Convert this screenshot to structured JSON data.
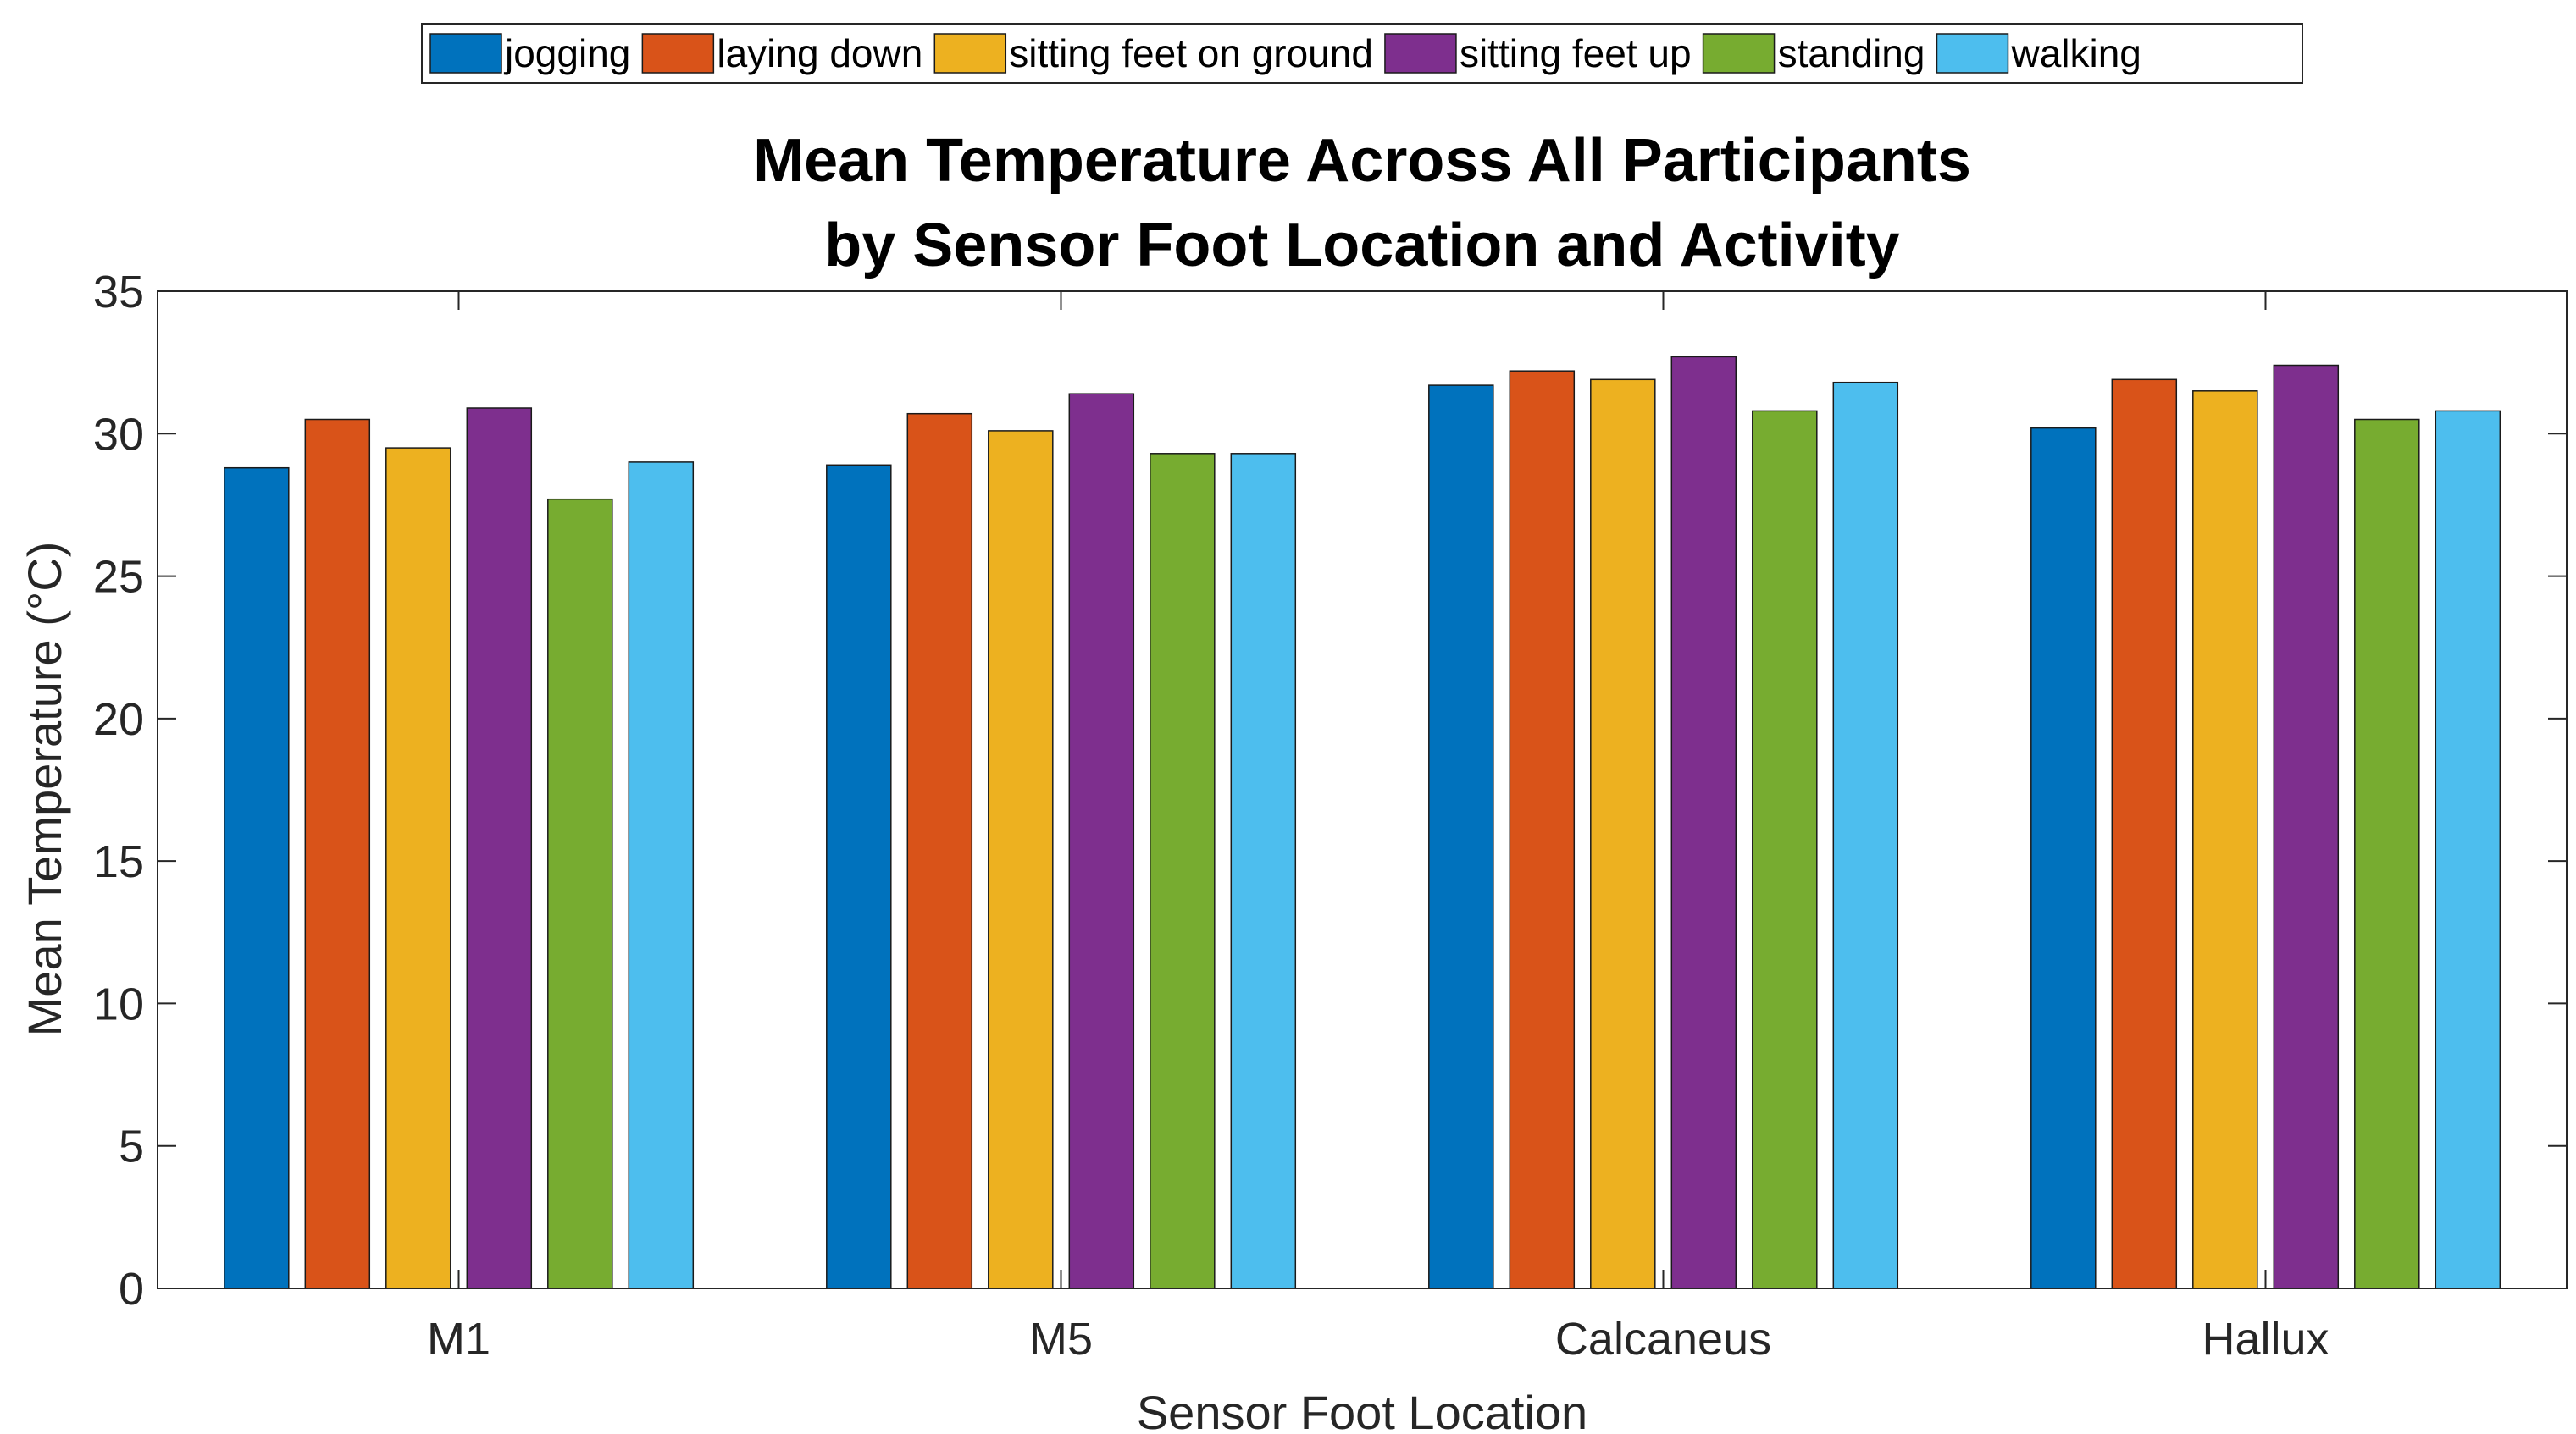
{
  "chart_data": {
    "type": "bar",
    "title": "Mean Temperature Across All Participants\nby Sensor Foot Location and Activity",
    "title_lines": [
      "Mean Temperature Across All Participants",
      "by Sensor Foot Location and Activity"
    ],
    "xlabel": "Sensor Foot Location",
    "ylabel": "Mean Temperature (°C)",
    "ylim": [
      0,
      35
    ],
    "yticks": [
      0,
      5,
      10,
      15,
      20,
      25,
      30,
      35
    ],
    "grid": false,
    "legend_position": "top-center",
    "categories": [
      "M1",
      "M5",
      "Calcaneus",
      "Hallux"
    ],
    "series": [
      {
        "name": "jogging",
        "color": "#0072BD",
        "values": [
          28.8,
          28.9,
          31.7,
          30.2
        ]
      },
      {
        "name": "laying down",
        "color": "#D95319",
        "values": [
          30.5,
          30.7,
          32.2,
          31.9
        ]
      },
      {
        "name": "sitting feet on ground",
        "color": "#EDB120",
        "values": [
          29.5,
          30.1,
          31.9,
          31.5
        ]
      },
      {
        "name": "sitting feet up",
        "color": "#7E2F8E",
        "values": [
          30.9,
          31.4,
          32.7,
          32.4
        ]
      },
      {
        "name": "standing",
        "color": "#77AC30",
        "values": [
          27.7,
          29.3,
          30.8,
          30.5
        ]
      },
      {
        "name": "walking",
        "color": "#4DBEEE",
        "values": [
          29.0,
          29.3,
          31.8,
          30.8
        ]
      }
    ]
  }
}
